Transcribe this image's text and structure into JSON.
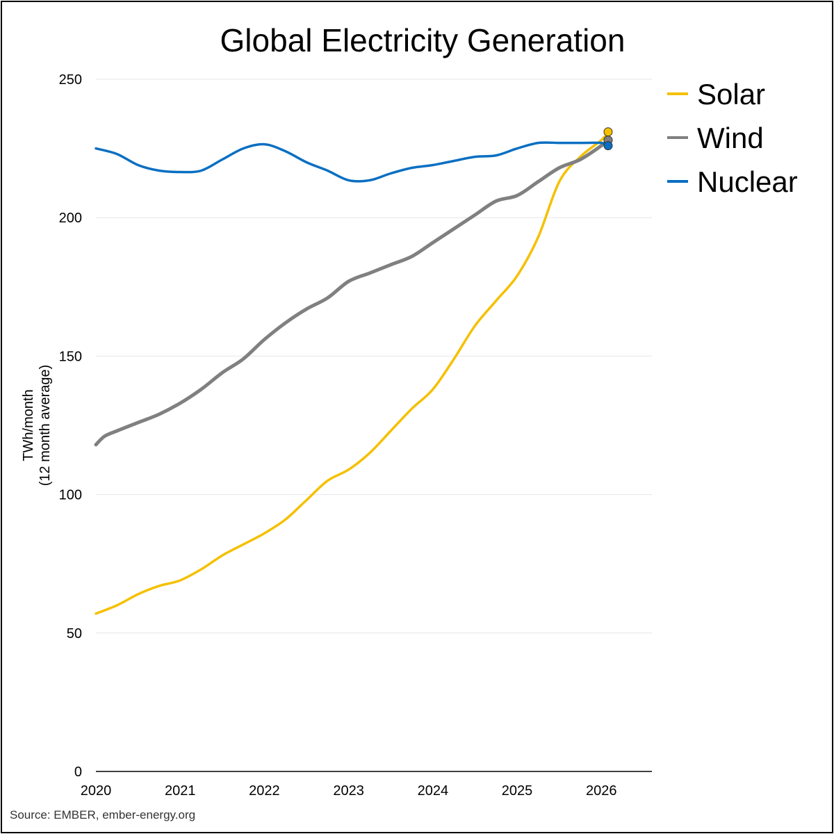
{
  "chart_data": {
    "type": "line",
    "title": "Global Electricity Generation",
    "xlabel": "",
    "ylabel_line1": "TWh/month",
    "ylabel_line2": "(12 month average)",
    "source": "Source: EMBER, ember-energy.org",
    "x_ticks": [
      "2020",
      "2021",
      "2022",
      "2023",
      "2024",
      "2025",
      "2026"
    ],
    "y_ticks": [
      "0",
      "50",
      "100",
      "150",
      "200",
      "250"
    ],
    "xlim": [
      2020.0,
      2026.6
    ],
    "ylim": [
      0,
      250
    ],
    "grid": true,
    "legend_position": "top-right",
    "series": [
      {
        "name": "Solar",
        "color": "#F5C000",
        "points": [
          [
            2020.0,
            57
          ],
          [
            2020.25,
            60
          ],
          [
            2020.5,
            64
          ],
          [
            2020.75,
            67
          ],
          [
            2021.0,
            69
          ],
          [
            2021.25,
            73
          ],
          [
            2021.5,
            78
          ],
          [
            2021.75,
            82
          ],
          [
            2022.0,
            86
          ],
          [
            2022.25,
            91
          ],
          [
            2022.5,
            98
          ],
          [
            2022.75,
            105
          ],
          [
            2023.0,
            109
          ],
          [
            2023.25,
            115
          ],
          [
            2023.5,
            123
          ],
          [
            2023.75,
            131
          ],
          [
            2024.0,
            138
          ],
          [
            2024.25,
            149
          ],
          [
            2024.5,
            161
          ],
          [
            2024.75,
            170
          ],
          [
            2025.0,
            179
          ],
          [
            2025.25,
            193
          ],
          [
            2025.5,
            213
          ],
          [
            2025.75,
            222
          ],
          [
            2026.0,
            228
          ],
          [
            2026.08,
            231
          ]
        ]
      },
      {
        "name": "Wind",
        "color": "#808080",
        "points": [
          [
            2020.0,
            118
          ],
          [
            2020.1,
            121
          ],
          [
            2020.25,
            123
          ],
          [
            2020.5,
            126
          ],
          [
            2020.75,
            129
          ],
          [
            2021.0,
            133
          ],
          [
            2021.25,
            138
          ],
          [
            2021.5,
            144
          ],
          [
            2021.75,
            149
          ],
          [
            2022.0,
            156
          ],
          [
            2022.25,
            162
          ],
          [
            2022.5,
            167
          ],
          [
            2022.75,
            171
          ],
          [
            2023.0,
            177
          ],
          [
            2023.25,
            180
          ],
          [
            2023.5,
            183
          ],
          [
            2023.75,
            186
          ],
          [
            2024.0,
            191
          ],
          [
            2024.25,
            196
          ],
          [
            2024.5,
            201
          ],
          [
            2024.75,
            206
          ],
          [
            2025.0,
            208
          ],
          [
            2025.25,
            213
          ],
          [
            2025.5,
            218
          ],
          [
            2025.75,
            221
          ],
          [
            2026.0,
            226
          ],
          [
            2026.08,
            228
          ]
        ]
      },
      {
        "name": "Nuclear",
        "color": "#0A6FC2",
        "points": [
          [
            2020.0,
            225
          ],
          [
            2020.25,
            223
          ],
          [
            2020.5,
            219
          ],
          [
            2020.75,
            217
          ],
          [
            2021.0,
            216.5
          ],
          [
            2021.25,
            217
          ],
          [
            2021.5,
            221
          ],
          [
            2021.75,
            225
          ],
          [
            2022.0,
            226.5
          ],
          [
            2022.25,
            224
          ],
          [
            2022.5,
            220
          ],
          [
            2022.75,
            217
          ],
          [
            2023.0,
            213.5
          ],
          [
            2023.25,
            213.5
          ],
          [
            2023.5,
            216
          ],
          [
            2023.75,
            218
          ],
          [
            2024.0,
            219
          ],
          [
            2024.25,
            220.5
          ],
          [
            2024.5,
            222
          ],
          [
            2024.75,
            222.5
          ],
          [
            2025.0,
            225
          ],
          [
            2025.25,
            227
          ],
          [
            2025.5,
            227
          ],
          [
            2025.75,
            227
          ],
          [
            2026.0,
            227
          ],
          [
            2026.08,
            226
          ]
        ]
      }
    ]
  }
}
